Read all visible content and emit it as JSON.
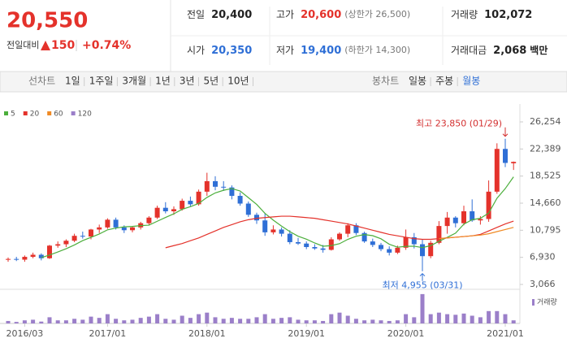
{
  "header": {
    "price": "20,550",
    "change_label": "전일대비",
    "change": "150",
    "change_pct": "+0.74%",
    "fields": [
      {
        "label": "전일",
        "value": "20,400"
      },
      {
        "label": "고가",
        "value": "20,600",
        "note": "(상한가 26,500)"
      },
      {
        "label": "거래량",
        "value": "102,072"
      },
      {
        "label": "시가",
        "value": "20,350"
      },
      {
        "label": "저가",
        "value": "19,400",
        "note": "(하한가 14,300)"
      },
      {
        "label": "거래대금",
        "value": "2,068",
        "unit": "백만"
      }
    ]
  },
  "tabs": {
    "line_label": "선차트",
    "line": [
      "1일",
      "1주일",
      "3개월",
      "1년",
      "3년",
      "5년",
      "10년"
    ],
    "candle_label": "봉차트",
    "candle": [
      "일봉",
      "주봉",
      "월봉"
    ],
    "selected": "월봉"
  },
  "chart_data": {
    "type": "candlestick",
    "categories": [
      null,
      null,
      "2016/03",
      null,
      null,
      null,
      null,
      null,
      null,
      null,
      null,
      null,
      "2017/01",
      null,
      null,
      null,
      null,
      null,
      null,
      null,
      null,
      null,
      null,
      null,
      "2018/01",
      null,
      null,
      null,
      null,
      null,
      null,
      null,
      null,
      null,
      null,
      null,
      "2019/01",
      null,
      null,
      null,
      null,
      null,
      null,
      null,
      null,
      null,
      null,
      null,
      "2020/01",
      null,
      null,
      null,
      null,
      null,
      null,
      null,
      null,
      null,
      null,
      null,
      "2021/01",
      null
    ],
    "open": [
      6600,
      6700,
      6600,
      7000,
      7300,
      6800,
      8600,
      8800,
      9300,
      10000,
      9900,
      10900,
      11200,
      12300,
      11200,
      10800,
      11200,
      11800,
      12600,
      14000,
      13500,
      13800,
      15000,
      14500,
      16300,
      17800,
      17000,
      16900,
      15700,
      14600,
      13000,
      12200,
      10500,
      10900,
      10300,
      9100,
      8900,
      8400,
      8200,
      8000,
      9500,
      10300,
      11500,
      10400,
      9200,
      8700,
      8100,
      7600,
      8300,
      9800,
      8800,
      7100,
      9000,
      11400,
      12600,
      11800,
      13500,
      12200,
      12400,
      16300,
      22400,
      20350
    ],
    "high": [
      6900,
      7000,
      7200,
      7600,
      7500,
      8700,
      9200,
      9500,
      10300,
      10600,
      11000,
      11600,
      12500,
      12600,
      11500,
      11400,
      12000,
      12800,
      14300,
      14800,
      14200,
      15300,
      15600,
      16600,
      19000,
      18500,
      17800,
      17200,
      16200,
      14900,
      13300,
      13200,
      11500,
      11200,
      10800,
      9700,
      9200,
      8800,
      8700,
      9800,
      10500,
      11800,
      11800,
      10600,
      9600,
      9000,
      8500,
      8600,
      10900,
      10400,
      9500,
      9300,
      12100,
      13400,
      12800,
      14300,
      15200,
      12800,
      17900,
      23200,
      23850,
      20600
    ],
    "low": [
      6300,
      6400,
      6300,
      6800,
      6500,
      6700,
      8300,
      8400,
      9100,
      9600,
      9500,
      10400,
      11000,
      10900,
      10400,
      10500,
      10900,
      11500,
      12400,
      13200,
      13000,
      13600,
      14200,
      14300,
      15700,
      16500,
      16400,
      15200,
      14300,
      12700,
      11700,
      10000,
      10200,
      9900,
      8800,
      8700,
      8100,
      8000,
      7600,
      7900,
      9300,
      9800,
      10100,
      9000,
      8400,
      7800,
      7200,
      7400,
      8000,
      8200,
      4955,
      6800,
      8800,
      10300,
      11200,
      11500,
      12000,
      11600,
      12000,
      16000,
      19800,
      19400
    ],
    "close": [
      6700,
      6600,
      7000,
      7300,
      6800,
      8600,
      8800,
      9300,
      10000,
      9900,
      10900,
      11200,
      12300,
      11200,
      10800,
      11200,
      11800,
      12600,
      14000,
      13500,
      13800,
      15000,
      14500,
      16300,
      17800,
      17000,
      16900,
      15700,
      14600,
      13000,
      12200,
      10500,
      10900,
      10300,
      9100,
      8900,
      8400,
      8200,
      8000,
      9500,
      10300,
      11500,
      10400,
      9200,
      8700,
      8100,
      7600,
      8300,
      9800,
      8800,
      7100,
      9000,
      11400,
      12600,
      11800,
      13500,
      12200,
      12400,
      16300,
      22400,
      20400,
      20550
    ],
    "up_color": "#e4322b",
    "down_color": "#2f6fd6",
    "ylim": [
      3066,
      26254
    ],
    "yticks": [
      {
        "value": 26254,
        "label": "26,254"
      },
      {
        "value": 22389,
        "label": "22,389"
      },
      {
        "value": 18525,
        "label": "18,525"
      },
      {
        "value": 14660,
        "label": "14,660"
      },
      {
        "value": 10795,
        "label": "10,795"
      },
      {
        "value": 6930,
        "label": "6,930"
      },
      {
        "value": 3066,
        "label": "3,066"
      }
    ],
    "grid": false,
    "ma": [
      {
        "name": "5",
        "color": "#4caf3c",
        "values": [
          null,
          null,
          null,
          null,
          6880,
          7260,
          7700,
          8160,
          8700,
          9320,
          9780,
          10260,
          10860,
          11100,
          11280,
          11340,
          11460,
          11520,
          12080,
          12620,
          13140,
          13780,
          14160,
          14620,
          15480,
          16120,
          16500,
          16740,
          16400,
          15440,
          14480,
          13200,
          12240,
          11380,
          10600,
          9940,
          9520,
          8980,
          8520,
          8600,
          8880,
          9500,
          9940,
          10180,
          10020,
          9580,
          8800,
          8380,
          8500,
          8520,
          8320,
          8600,
          9220,
          9780,
          10380,
          11660,
          12300,
          12500,
          13240,
          15360,
          16740,
          18410
        ]
      },
      {
        "name": "20",
        "color": "#e4322b",
        "values": [
          null,
          null,
          null,
          null,
          null,
          null,
          null,
          null,
          null,
          null,
          null,
          null,
          null,
          null,
          null,
          null,
          null,
          null,
          null,
          8300,
          8600,
          8900,
          9300,
          9700,
          10200,
          10700,
          11200,
          11600,
          12000,
          12300,
          12500,
          12600,
          12700,
          12800,
          12800,
          12700,
          12600,
          12500,
          12300,
          12100,
          11900,
          11700,
          11400,
          11100,
          10800,
          10500,
          10200,
          10000,
          9800,
          9600,
          9500,
          9500,
          9600,
          9700,
          9800,
          9900,
          10000,
          10200,
          10700,
          11200,
          11700,
          12100
        ]
      },
      {
        "name": "60",
        "color": "#f08a24",
        "values": [
          null,
          null,
          null,
          null,
          null,
          null,
          null,
          null,
          null,
          null,
          null,
          null,
          null,
          null,
          null,
          null,
          null,
          null,
          null,
          null,
          null,
          null,
          null,
          null,
          null,
          null,
          null,
          null,
          null,
          null,
          null,
          null,
          null,
          null,
          null,
          null,
          null,
          null,
          null,
          null,
          null,
          null,
          null,
          null,
          null,
          null,
          null,
          null,
          null,
          null,
          null,
          null,
          9600,
          9700,
          9800,
          9900,
          10000,
          10100,
          10300,
          10600,
          10900,
          11200
        ]
      },
      {
        "name": "120",
        "color": "#9b7fc9",
        "values": [
          null,
          null,
          null,
          null,
          null,
          null,
          null,
          null,
          null,
          null,
          null,
          null,
          null,
          null,
          null,
          null,
          null,
          null,
          null,
          null,
          null,
          null,
          null,
          null,
          null,
          null,
          null,
          null,
          null,
          null,
          null,
          null,
          null,
          null,
          null,
          null,
          null,
          null,
          null,
          null,
          null,
          null,
          null,
          null,
          null,
          null,
          null,
          null,
          null,
          null,
          null,
          null,
          null,
          null,
          null,
          null,
          null,
          null,
          null,
          null,
          null,
          null
        ]
      }
    ],
    "volume": {
      "name": "거래량",
      "color": "#9b7fc9",
      "ylim": [
        0,
        100
      ],
      "values": [
        8,
        5,
        10,
        12,
        6,
        20,
        10,
        10,
        15,
        12,
        22,
        18,
        30,
        15,
        10,
        12,
        18,
        22,
        30,
        15,
        12,
        25,
        18,
        30,
        35,
        20,
        15,
        18,
        15,
        15,
        20,
        30,
        15,
        18,
        20,
        12,
        10,
        10,
        8,
        30,
        35,
        25,
        15,
        10,
        12,
        10,
        8,
        10,
        30,
        20,
        95,
        30,
        35,
        30,
        28,
        32,
        25,
        20,
        40,
        40,
        30,
        10
      ]
    },
    "annotations": {
      "high": "최고 23,850 (01/29)",
      "low": "최저 4,955 (03/31)"
    }
  }
}
